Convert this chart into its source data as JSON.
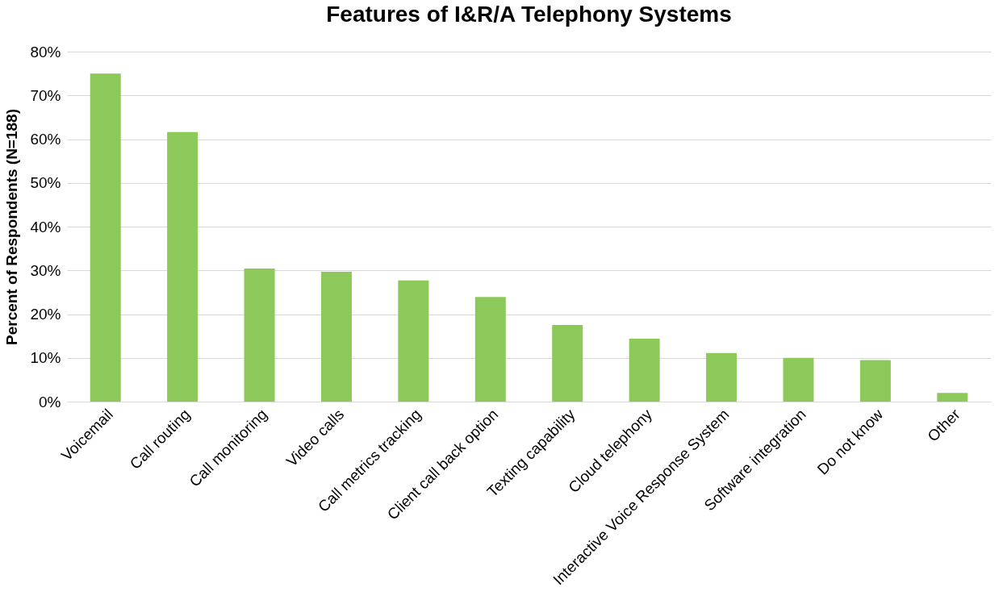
{
  "chart_data": {
    "type": "bar",
    "title": "Features of I&R/A Telephony Systems",
    "ylabel": "Percent of Respondents (N=188)",
    "categories": [
      "Voicemail",
      "Call routing",
      "Call monitoring",
      "Video calls",
      "Call metrics tracking",
      "Client call back option",
      "Texting capability",
      "Cloud telephony",
      "Interactive Voice Response System",
      "Software integration",
      "Do not know",
      "Other"
    ],
    "values": [
      75,
      61.6,
      30.4,
      29.7,
      27.7,
      23.9,
      17.5,
      14.4,
      11.1,
      10,
      9.5,
      2
    ],
    "color": "#8cc85a",
    "ylim": [
      0,
      80
    ],
    "yticks": [
      {
        "value": 0,
        "label": "0%"
      },
      {
        "value": 10,
        "label": "10%"
      },
      {
        "value": 20,
        "label": "20%"
      },
      {
        "value": 30,
        "label": "30%"
      },
      {
        "value": 40,
        "label": "40%"
      },
      {
        "value": 50,
        "label": "50%"
      },
      {
        "value": 60,
        "label": "60%"
      },
      {
        "value": 70,
        "label": "70%"
      },
      {
        "value": 80,
        "label": "80%"
      }
    ],
    "grid": "y"
  }
}
